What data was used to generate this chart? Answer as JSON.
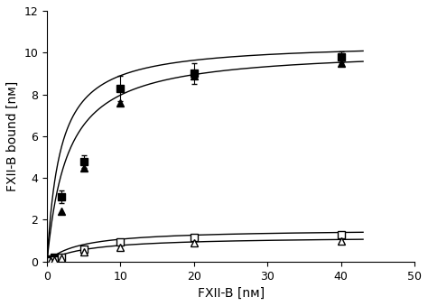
{
  "xlabel": "FXII-B [nм]",
  "ylabel": "FXII-B bound [nм]",
  "xlim": [
    0,
    50
  ],
  "ylim": [
    0,
    12
  ],
  "xticks": [
    0,
    10,
    20,
    30,
    40,
    50
  ],
  "yticks": [
    0,
    2,
    4,
    6,
    8,
    10,
    12
  ],
  "filled_square_x": [
    0.5,
    1.0,
    2.0,
    5.0,
    10.0,
    20.0,
    40.0
  ],
  "filled_square_y": [
    0.1,
    0.2,
    3.1,
    4.8,
    8.3,
    9.0,
    9.8
  ],
  "filled_square_yerr": [
    0.05,
    0.05,
    0.3,
    0.3,
    0.6,
    0.5,
    0.25
  ],
  "filled_triangle_x": [
    0.5,
    1.0,
    2.0,
    5.0,
    10.0,
    20.0,
    40.0
  ],
  "filled_triangle_y": [
    0.1,
    0.2,
    2.4,
    4.5,
    7.6,
    8.9,
    9.5
  ],
  "open_square_x": [
    0.5,
    1.0,
    2.0,
    5.0,
    10.0,
    20.0,
    40.0
  ],
  "open_square_y": [
    0.05,
    0.08,
    0.2,
    0.6,
    0.95,
    1.15,
    1.3
  ],
  "open_triangle_x": [
    0.5,
    1.0,
    2.0,
    5.0,
    10.0,
    20.0,
    40.0
  ],
  "open_triangle_y": [
    0.03,
    0.06,
    0.15,
    0.48,
    0.7,
    0.88,
    1.0
  ],
  "bmax_fs": 10.5,
  "kd_fs": 1.8,
  "bmax_ft": 10.2,
  "kd_ft": 2.8,
  "bmax_os": 1.55,
  "kd_os": 4.5,
  "bmax_ot": 1.2,
  "kd_ot": 5.5,
  "marker_size": 5.5,
  "line_color": "#000000",
  "marker_color_filled": "#000000",
  "marker_color_open": "#000000",
  "background_color": "#ffffff",
  "font_size_label": 10,
  "font_size_tick": 9
}
